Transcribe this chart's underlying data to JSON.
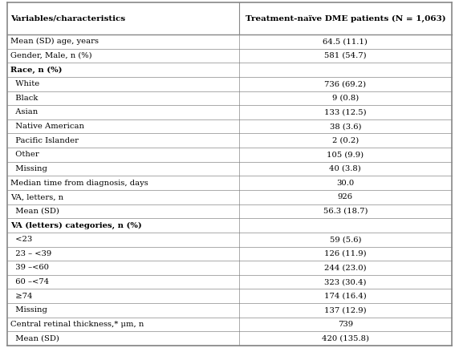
{
  "col1_header": "Variables/characteristics",
  "col2_header": "Treatment-naïve DME patients (N = 1,063)",
  "rows": [
    {
      "label": "Mean (SD) age, years",
      "value": "64.5 (11.1)",
      "bold": false
    },
    {
      "label": "Gender, Male, n (%)",
      "value": "581 (54.7)",
      "bold": false
    },
    {
      "label": "Race, n (%)",
      "value": "",
      "bold": true
    },
    {
      "label": "  White",
      "value": "736 (69.2)",
      "bold": false
    },
    {
      "label": "  Black",
      "value": "9 (0.8)",
      "bold": false
    },
    {
      "label": "  Asian",
      "value": "133 (12.5)",
      "bold": false
    },
    {
      "label": "  Native American",
      "value": "38 (3.6)",
      "bold": false
    },
    {
      "label": "  Pacific Islander",
      "value": "2 (0.2)",
      "bold": false
    },
    {
      "label": "  Other",
      "value": "105 (9.9)",
      "bold": false
    },
    {
      "label": "  Missing",
      "value": "40 (3.8)",
      "bold": false
    },
    {
      "label": "Median time from diagnosis, days",
      "value": "30.0",
      "bold": false
    },
    {
      "label": "VA, letters, n",
      "value": "926",
      "bold": false
    },
    {
      "label": "  Mean (SD)",
      "value": "56.3 (18.7)",
      "bold": false
    },
    {
      "label": "VA (letters) categories, n (%)",
      "value": "",
      "bold": true
    },
    {
      "label": "  <23",
      "value": "59 (5.6)",
      "bold": false
    },
    {
      "label": "  23 – <39",
      "value": "126 (11.9)",
      "bold": false
    },
    {
      "label": "  39 –<60",
      "value": "244 (23.0)",
      "bold": false
    },
    {
      "label": "  60 –<74",
      "value": "323 (30.4)",
      "bold": false
    },
    {
      "label": "  ≥74",
      "value": "174 (16.4)",
      "bold": false
    },
    {
      "label": "  Missing",
      "value": "137 (12.9)",
      "bold": false
    },
    {
      "label": "Central retinal thickness,* μm, n",
      "value": "739",
      "bold": false
    },
    {
      "label": "  Mean (SD)",
      "value": "420 (135.8)",
      "bold": false
    }
  ],
  "background_color": "#ffffff",
  "line_color": "#888888",
  "text_color": "#000000",
  "font_size": 7.2,
  "col_split": 0.525,
  "fig_width": 5.67,
  "fig_height": 4.34,
  "dpi": 100
}
